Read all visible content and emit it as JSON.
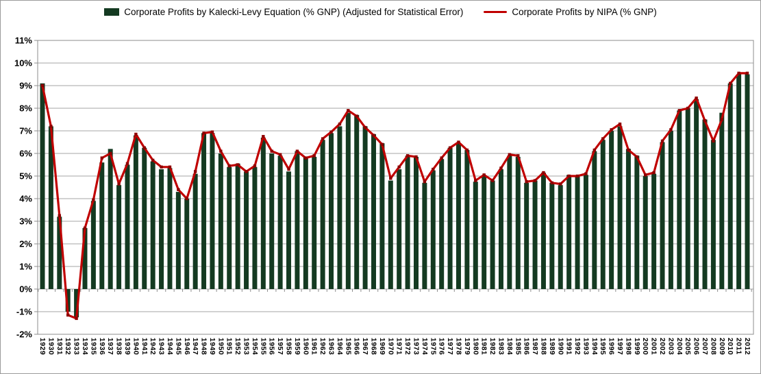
{
  "legend": {
    "kalecki_label": "Corporate Profits by Kalecki-Levy Equation (% GNP) (Adjusted for Statistical Error)",
    "nipa_label": "Corporate Profits by NIPA (% GNP)"
  },
  "colors": {
    "bar": "#143a21",
    "line": "#c00000",
    "marker": "#8f0000",
    "grid": "#a6a6a6",
    "border": "#8c8c8c",
    "text": "#000000",
    "background": "#ffffff"
  },
  "chart_data": {
    "type": "bar+line",
    "title": "",
    "xlabel": "",
    "ylabel": "",
    "ylim": [
      -2,
      11
    ],
    "y_tick_step": 1,
    "y_tick_suffix": "%",
    "grid": true,
    "legend_position": "top center",
    "x": [
      1929,
      1930,
      1931,
      1932,
      1933,
      1934,
      1935,
      1936,
      1937,
      1938,
      1939,
      1940,
      1941,
      1942,
      1943,
      1944,
      1945,
      1946,
      1947,
      1948,
      1949,
      1950,
      1951,
      1952,
      1953,
      1954,
      1955,
      1956,
      1957,
      1958,
      1959,
      1960,
      1961,
      1962,
      1963,
      1964,
      1965,
      1966,
      1967,
      1968,
      1969,
      1970,
      1971,
      1972,
      1973,
      1974,
      1975,
      1976,
      1977,
      1978,
      1979,
      1980,
      1981,
      1982,
      1983,
      1984,
      1985,
      1986,
      1987,
      1988,
      1989,
      1990,
      1991,
      1992,
      1993,
      1994,
      1995,
      1996,
      1997,
      1998,
      1999,
      2000,
      2001,
      2002,
      2003,
      2004,
      2005,
      2006,
      2007,
      2008,
      2009,
      2010,
      2011,
      2012
    ],
    "series": [
      {
        "name": "Corporate Profits by Kalecki-Levy Equation (% GNP) (Adjusted for Statistical Error)",
        "type": "bar",
        "values": [
          9.1,
          7.2,
          3.2,
          -1.0,
          -1.25,
          2.7,
          3.9,
          5.6,
          6.2,
          4.6,
          5.5,
          6.8,
          6.25,
          5.65,
          5.3,
          5.35,
          4.3,
          4.0,
          5.1,
          6.9,
          6.9,
          6.0,
          5.4,
          5.55,
          5.2,
          5.4,
          6.7,
          6.0,
          5.9,
          5.2,
          6.1,
          5.85,
          5.85,
          6.6,
          6.9,
          7.2,
          7.8,
          7.7,
          7.2,
          6.85,
          6.45,
          4.8,
          5.3,
          5.9,
          5.85,
          4.7,
          5.25,
          5.75,
          6.25,
          6.45,
          6.15,
          4.75,
          5.0,
          4.8,
          5.3,
          5.9,
          5.85,
          4.7,
          4.8,
          5.15,
          4.7,
          4.6,
          5.05,
          5.0,
          5.05,
          6.1,
          6.6,
          7.0,
          7.2,
          6.2,
          5.9,
          5.0,
          5.1,
          6.5,
          7.0,
          7.9,
          8.0,
          8.4,
          7.5,
          6.6,
          7.8,
          9.1,
          9.5,
          9.5
        ]
      },
      {
        "name": "Corporate Profits by NIPA (% GNP)",
        "type": "line",
        "values": [
          9.0,
          7.2,
          3.25,
          -1.15,
          -1.3,
          2.7,
          3.95,
          5.8,
          6.0,
          4.65,
          5.55,
          6.85,
          6.25,
          5.7,
          5.4,
          5.4,
          4.4,
          4.0,
          5.2,
          6.9,
          6.95,
          6.1,
          5.45,
          5.5,
          5.2,
          5.45,
          6.75,
          6.1,
          5.95,
          5.3,
          6.1,
          5.8,
          5.9,
          6.65,
          6.95,
          7.3,
          7.9,
          7.65,
          7.15,
          6.8,
          6.4,
          4.9,
          5.4,
          5.9,
          5.85,
          4.75,
          5.3,
          5.8,
          6.25,
          6.5,
          6.15,
          4.8,
          5.05,
          4.8,
          5.35,
          5.95,
          5.9,
          4.75,
          4.8,
          5.15,
          4.7,
          4.65,
          5.0,
          5.0,
          5.1,
          6.15,
          6.65,
          7.05,
          7.3,
          6.15,
          5.85,
          5.05,
          5.15,
          6.55,
          7.05,
          7.9,
          8.0,
          8.45,
          7.45,
          6.55,
          7.5,
          9.1,
          9.55,
          9.55
        ]
      }
    ]
  }
}
